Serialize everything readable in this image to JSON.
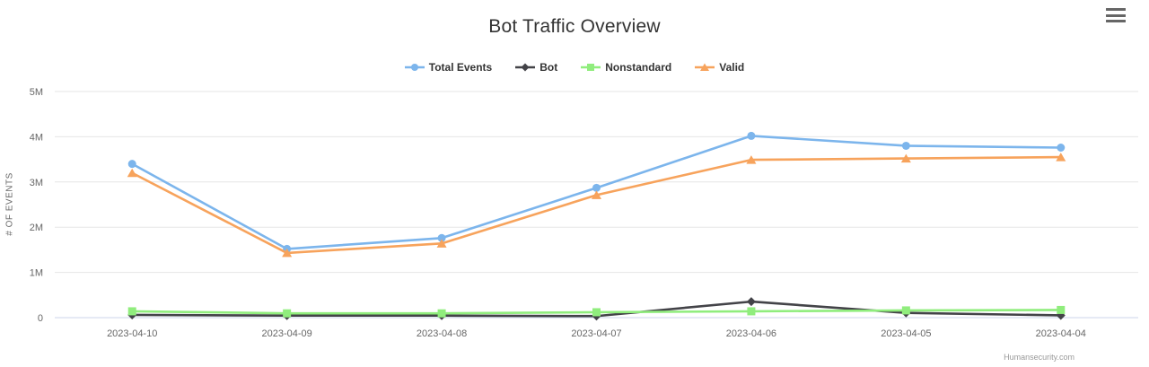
{
  "chart_data": {
    "type": "line",
    "title": "Bot Traffic Overview",
    "ylabel": "# OF EVENTS",
    "categories": [
      "2023-04-10",
      "2023-04-09",
      "2023-04-08",
      "2023-04-07",
      "2023-04-06",
      "2023-04-05",
      "2023-04-04"
    ],
    "series": [
      {
        "name": "Total Events",
        "color": "#7cb5ec",
        "marker": "circle",
        "values": [
          3400000,
          1520000,
          1760000,
          2870000,
          4020000,
          3800000,
          3760000
        ]
      },
      {
        "name": "Bot",
        "color": "#434348",
        "marker": "diamond",
        "values": [
          60000,
          45000,
          45000,
          35000,
          355000,
          105000,
          50000
        ]
      },
      {
        "name": "Nonstandard",
        "color": "#90ed7d",
        "marker": "square",
        "values": [
          140000,
          95000,
          95000,
          120000,
          140000,
          160000,
          170000
        ]
      },
      {
        "name": "Valid",
        "color": "#f7a35c",
        "marker": "triangle",
        "values": [
          3200000,
          1430000,
          1640000,
          2710000,
          3490000,
          3520000,
          3550000
        ]
      }
    ],
    "ylim": [
      0,
      5000000
    ],
    "yticks": [
      0,
      1000000,
      2000000,
      3000000,
      4000000,
      5000000
    ],
    "ytick_labels": [
      "0",
      "1M",
      "2M",
      "3M",
      "4M",
      "5M"
    ],
    "grid": true,
    "legend_position": "top",
    "colors": {
      "gridline": "#e6e6e6",
      "axis_line": "#ccd6eb",
      "tick_label": "#666666",
      "title": "#333333"
    }
  },
  "context_menu": {
    "icon": "hamburger-menu"
  },
  "credits": {
    "text": "Humansecurity.com"
  }
}
